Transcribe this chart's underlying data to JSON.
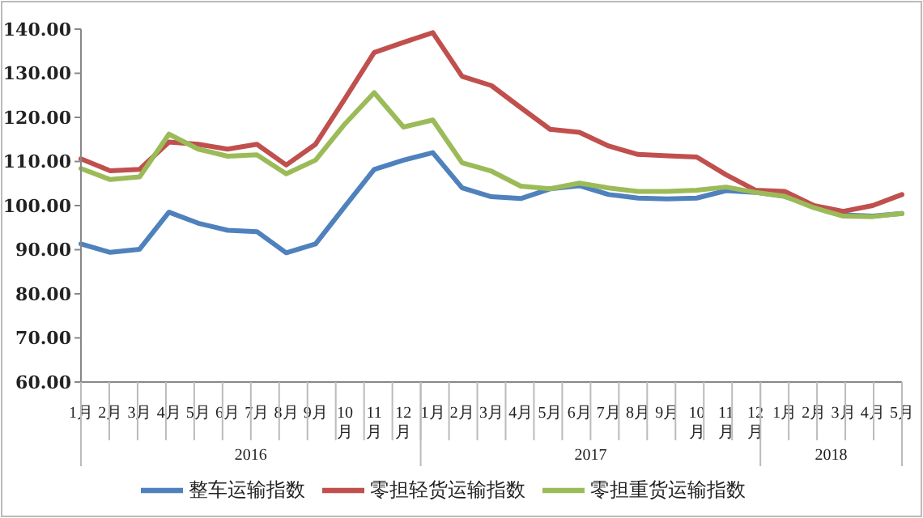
{
  "chart_data": {
    "type": "line",
    "categories": [
      "1月",
      "2月",
      "3月",
      "4月",
      "5月",
      "6月",
      "7月",
      "8月",
      "9月",
      "10月",
      "11月",
      "12月",
      "1月",
      "2月",
      "3月",
      "4月",
      "5月",
      "6月",
      "7月",
      "8月",
      "9月",
      "10月",
      "11月",
      "12月",
      "1月",
      "2月",
      "3月",
      "4月",
      "5月"
    ],
    "annotations": [
      "2016",
      "2017",
      "2018"
    ],
    "series": [
      {
        "name": "整车运输指数",
        "color": "#4f81bd",
        "values": [
          91.3,
          89.4,
          90.1,
          98.5,
          96.0,
          94.4,
          94.1,
          89.3,
          91.3,
          99.8,
          108.2,
          110.3,
          112.0,
          104.0,
          102.0,
          101.6,
          103.8,
          104.5,
          102.5,
          101.7,
          101.5,
          101.7,
          103.4,
          103.0,
          102.1,
          99.8,
          97.9,
          97.6,
          98.2
        ]
      },
      {
        "name": "零担轻货运输指数",
        "color": "#c0504d",
        "values": [
          110.6,
          107.9,
          108.2,
          114.4,
          113.9,
          112.8,
          113.9,
          109.2,
          113.9,
          124.2,
          134.7,
          137.0,
          139.2,
          129.3,
          127.2,
          122.2,
          117.3,
          116.6,
          113.5,
          111.6,
          111.3,
          111.0,
          107.0,
          103.5,
          103.2,
          100.0,
          98.7,
          100.0,
          102.5
        ]
      },
      {
        "name": "零担重货运输指数",
        "color": "#9bbb59",
        "values": [
          108.4,
          105.9,
          106.5,
          116.2,
          112.8,
          111.2,
          111.5,
          107.2,
          110.3,
          118.5,
          125.6,
          117.8,
          119.4,
          109.7,
          107.8,
          104.4,
          103.8,
          105.1,
          104.0,
          103.2,
          103.2,
          103.5,
          104.2,
          103.0,
          102.1,
          99.5,
          97.6,
          97.5,
          98.2
        ]
      }
    ],
    "ylim": [
      60,
      140
    ],
    "yticks": [
      {
        "value": 60,
        "label": "60.00"
      },
      {
        "value": 70,
        "label": "70.00"
      },
      {
        "value": 80,
        "label": "80.00"
      },
      {
        "value": 90,
        "label": "90.00"
      },
      {
        "value": 100,
        "label": "100.00"
      },
      {
        "value": 110,
        "label": "110.00"
      },
      {
        "value": 120,
        "label": "120.00"
      },
      {
        "value": 130,
        "label": "130.00"
      },
      {
        "value": 140,
        "label": "140.00"
      }
    ],
    "grid": false,
    "legend": "bottom",
    "marker": "none",
    "line_style": "solid"
  }
}
